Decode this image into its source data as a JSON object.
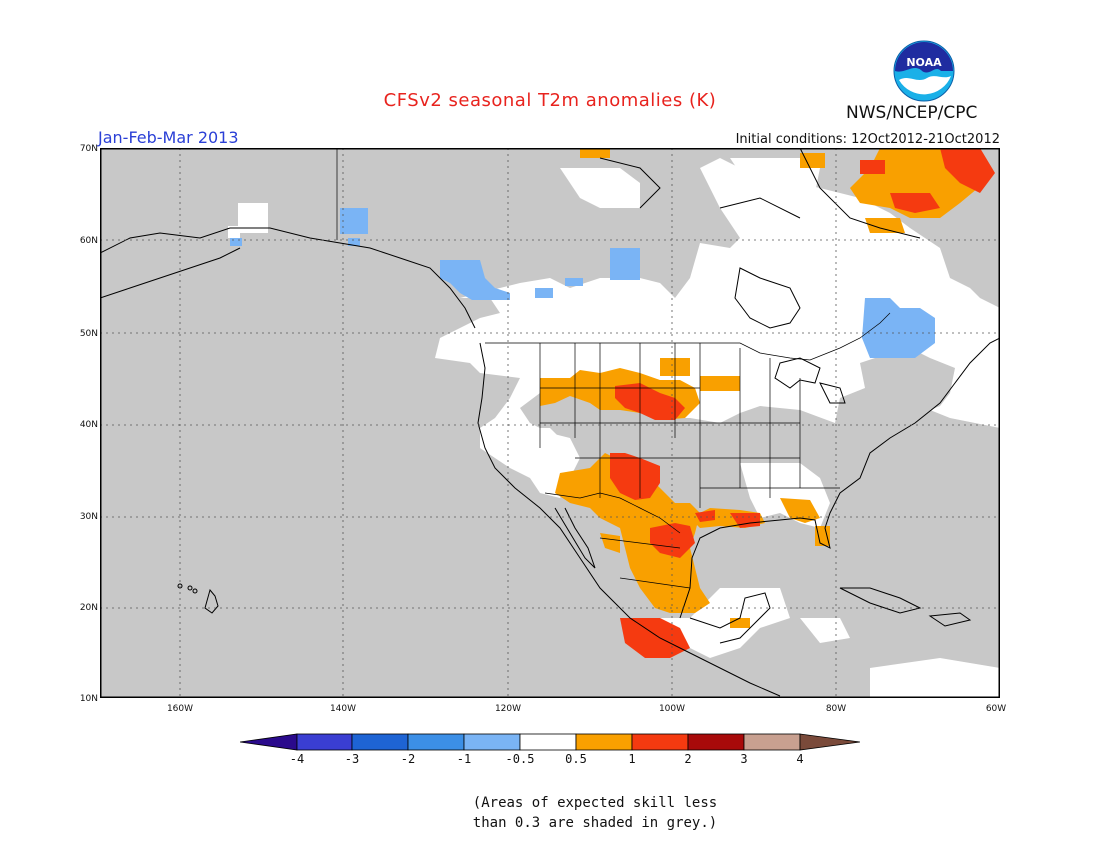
{
  "header": {
    "title": "CFSv2 seasonal T2m anomalies (K)",
    "season": "Jan-Feb-Mar 2013",
    "initial_conditions": "Initial conditions: 12Oct2012-21Oct2012",
    "agency": "NWS/NCEP/CPC",
    "logo_text": "NOAA"
  },
  "map": {
    "lat_labels": [
      "70N",
      "60N",
      "50N",
      "40N",
      "30N",
      "20N",
      "10N"
    ],
    "lon_labels": [
      "160W",
      "140W",
      "120W",
      "100W",
      "80W",
      "60W"
    ],
    "lat_range": [
      10,
      70
    ],
    "lon_range": [
      -170,
      -60
    ],
    "grid": true,
    "colors": {
      "no_skill": "#c8c8c8",
      "neutral": "#ffffff",
      "cold_05_1": "#7ab4f5",
      "warm_05_1": "#f9a000",
      "warm_1_2": "#f53a10",
      "ocean_outline": "#000000"
    }
  },
  "legend": {
    "labels": [
      "-4",
      "-3",
      "-2",
      "-1",
      "-0.5",
      "0.5",
      "1",
      "2",
      "3",
      "4"
    ],
    "colors": [
      "#2a0a8c",
      "#3a3ed2",
      "#1e64d4",
      "#3c8fe6",
      "#7ab4f5",
      "#ffffff",
      "#f9a000",
      "#f53a10",
      "#a80a0a",
      "#c8a090",
      "#7a4a3a"
    ]
  },
  "footnote": {
    "line1": "(Areas of expected skill less",
    "line2": "than 0.3 are shaded in grey.)"
  }
}
